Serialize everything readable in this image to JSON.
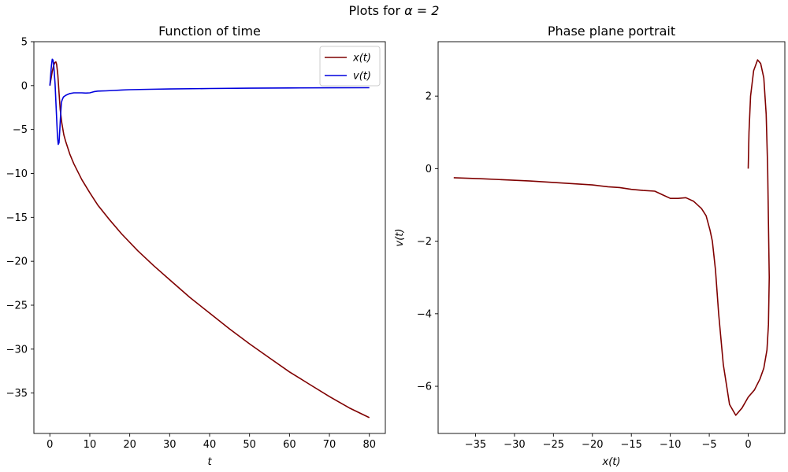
{
  "figure": {
    "suptitle_prefix": "Plots for ",
    "suptitle_math": "α = 2"
  },
  "chart_data": [
    {
      "type": "line",
      "title": "Function of time",
      "xlabel": "t",
      "ylabel": "",
      "xlim": [
        -4,
        84
      ],
      "ylim": [
        -39.6,
        5
      ],
      "xticks": [
        0,
        10,
        20,
        30,
        40,
        50,
        60,
        70,
        80
      ],
      "xtick_labels": [
        "0",
        "10",
        "20",
        "30",
        "40",
        "50",
        "60",
        "70",
        "80"
      ],
      "yticks": [
        5,
        0,
        -5,
        -10,
        -15,
        -20,
        -25,
        -30,
        -35
      ],
      "ytick_labels": [
        "5",
        "0",
        "−5",
        "−10",
        "−15",
        "−20",
        "−25",
        "−30",
        "−35"
      ],
      "grid": false,
      "legend": "top-right",
      "series": [
        {
          "name": "x(t)",
          "color": "#7f0000",
          "x": [
            0,
            0.3,
            0.6,
            0.9,
            1.2,
            1.5,
            1.7,
            2.0,
            2.3,
            2.6,
            3.0,
            3.5,
            4.0,
            5.0,
            6.0,
            8.0,
            10.0,
            12.0,
            15.0,
            18.0,
            22.0,
            26.0,
            30.0,
            35.0,
            40.0,
            45.0,
            50.0,
            55.0,
            60.0,
            65.0,
            70.0,
            75.0,
            80.0
          ],
          "y": [
            0,
            0.8,
            1.6,
            2.2,
            2.6,
            2.7,
            2.4,
            1.2,
            -0.8,
            -2.7,
            -4.3,
            -5.6,
            -6.4,
            -7.8,
            -8.9,
            -10.7,
            -12.2,
            -13.6,
            -15.3,
            -16.9,
            -18.8,
            -20.5,
            -22.1,
            -24.1,
            -25.9,
            -27.7,
            -29.4,
            -31.0,
            -32.6,
            -34.0,
            -35.4,
            -36.7,
            -37.8
          ]
        },
        {
          "name": "v(t)",
          "color": "#0000dd",
          "x": [
            0,
            0.2,
            0.4,
            0.6,
            0.8,
            1.0,
            1.3,
            1.6,
            1.9,
            2.1,
            2.3,
            2.5,
            2.7,
            2.9,
            3.1,
            3.4,
            4.0,
            5.0,
            6.0,
            8.0,
            9.0,
            10.0,
            11.0,
            12.0,
            14.0,
            16.0,
            18.0,
            20.0,
            25.0,
            30.0,
            40.0,
            50.0,
            60.0,
            70.0,
            80.0
          ],
          "y": [
            0,
            1.2,
            2.3,
            3.0,
            2.9,
            2.2,
            0.2,
            -2.8,
            -5.7,
            -6.7,
            -6.5,
            -5.0,
            -3.2,
            -1.9,
            -1.6,
            -1.3,
            -1.1,
            -0.9,
            -0.82,
            -0.82,
            -0.85,
            -0.82,
            -0.7,
            -0.62,
            -0.6,
            -0.55,
            -0.5,
            -0.46,
            -0.42,
            -0.38,
            -0.33,
            -0.29,
            -0.27,
            -0.25,
            -0.24
          ]
        }
      ]
    },
    {
      "type": "line",
      "title": "Phase plane portrait",
      "xlabel": "x(t)",
      "ylabel": "v(t)",
      "xlim": [
        -39.8,
        4.7
      ],
      "ylim": [
        -7.3,
        3.5
      ],
      "xticks": [
        -35,
        -30,
        -25,
        -20,
        -15,
        -10,
        -5,
        0
      ],
      "xtick_labels": [
        "−35",
        "−30",
        "−25",
        "−20",
        "−15",
        "−10",
        "−5",
        "0"
      ],
      "yticks": [
        2,
        0,
        -2,
        -4,
        -6
      ],
      "ytick_labels": [
        "2",
        "0",
        "−2",
        "−4",
        "−6"
      ],
      "grid": false,
      "legend": "none",
      "series": [
        {
          "name": "",
          "color": "#7f0000",
          "x": [
            0,
            0.1,
            0.3,
            0.7,
            1.2,
            1.6,
            2.0,
            2.3,
            2.5,
            2.6,
            2.7,
            2.6,
            2.4,
            2.0,
            1.5,
            0.8,
            0,
            -0.8,
            -1.6,
            -2.4,
            -3.2,
            -3.8,
            -4.2,
            -4.6,
            -4.9,
            -5.4,
            -6.0,
            -7.0,
            -8.0,
            -9.0,
            -10.0,
            -11.0,
            -12.0,
            -13.5,
            -15.0,
            -16.5,
            -18.0,
            -20.0,
            -22.0,
            -25.0,
            -28.0,
            -31.0,
            -34.0,
            -37.8
          ],
          "y": [
            0,
            1.0,
            2.0,
            2.7,
            3.0,
            2.9,
            2.5,
            1.5,
            0.0,
            -1.5,
            -3.0,
            -4.3,
            -5.0,
            -5.5,
            -5.8,
            -6.1,
            -6.3,
            -6.6,
            -6.8,
            -6.5,
            -5.4,
            -4.0,
            -2.8,
            -2.0,
            -1.7,
            -1.3,
            -1.1,
            -0.9,
            -0.8,
            -0.82,
            -0.82,
            -0.72,
            -0.62,
            -0.6,
            -0.57,
            -0.52,
            -0.5,
            -0.45,
            -0.42,
            -0.38,
            -0.34,
            -0.31,
            -0.28,
            -0.25
          ]
        }
      ]
    }
  ]
}
